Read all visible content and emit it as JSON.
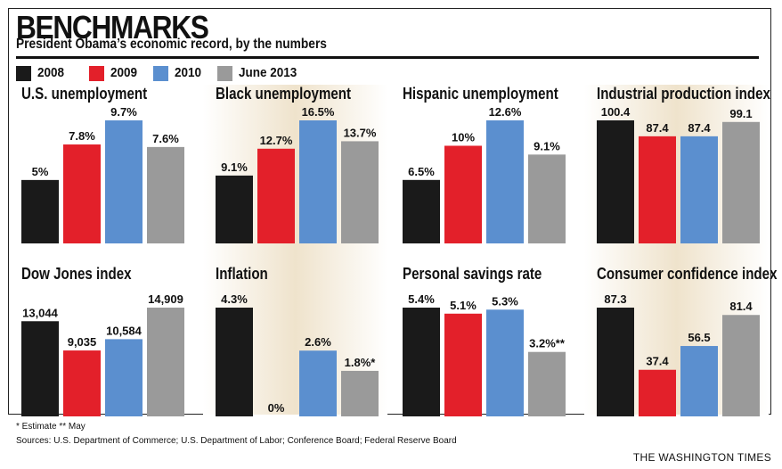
{
  "header": {
    "title": "BENCHMARKS",
    "subtitle": "President Obama’s economic record, by the numbers"
  },
  "legend": [
    {
      "label": "2008",
      "color": "#1a1a1a"
    },
    {
      "label": "2009",
      "color": "#e3202a"
    },
    {
      "label": "2010",
      "color": "#5b8fcf"
    },
    {
      "label": "June 2013",
      "color": "#9a9a9a"
    }
  ],
  "chart_data": [
    {
      "type": "bar",
      "title": "U.S. unemployment",
      "categories": [
        "2008",
        "2009",
        "2010",
        "June 2013"
      ],
      "values": [
        5,
        7.8,
        9.7,
        7.6
      ],
      "labels": [
        "5%",
        "7.8%",
        "9.7%",
        "7.6%"
      ],
      "ylim": [
        0,
        9.7
      ]
    },
    {
      "type": "bar",
      "title": "Black unemployment",
      "categories": [
        "2008",
        "2009",
        "2010",
        "June 2013"
      ],
      "values": [
        9.1,
        12.7,
        16.5,
        13.7
      ],
      "labels": [
        "9.1%",
        "12.7%",
        "16.5%",
        "13.7%"
      ],
      "ylim": [
        0,
        16.5
      ]
    },
    {
      "type": "bar",
      "title": "Hispanic unemployment",
      "categories": [
        "2008",
        "2009",
        "2010",
        "June 2013"
      ],
      "values": [
        6.5,
        10,
        12.6,
        9.1
      ],
      "labels": [
        "6.5%",
        "10%",
        "12.6%",
        "9.1%"
      ],
      "ylim": [
        0,
        12.6
      ]
    },
    {
      "type": "bar",
      "title": "Industrial production index",
      "categories": [
        "2008",
        "2009",
        "2010",
        "June 2013"
      ],
      "values": [
        100.4,
        87.4,
        87.4,
        99.1
      ],
      "labels": [
        "100.4",
        "87.4",
        "87.4",
        "99.1"
      ],
      "ylim": [
        0,
        100.4
      ]
    },
    {
      "type": "bar",
      "title": "Dow Jones index",
      "categories": [
        "2008",
        "2009",
        "2010",
        "June 2013"
      ],
      "values": [
        13044,
        9035,
        10584,
        14909
      ],
      "labels": [
        "13,044",
        "9,035",
        "10,584",
        "14,909"
      ],
      "ylim": [
        0,
        14909
      ]
    },
    {
      "type": "bar",
      "title": "Inflation",
      "categories": [
        "2008",
        "2009",
        "2010",
        "June 2013"
      ],
      "values": [
        4.3,
        0,
        2.6,
        1.8
      ],
      "labels": [
        "4.3%",
        "0%",
        "2.6%",
        "1.8%*"
      ],
      "ylim": [
        0,
        4.3
      ]
    },
    {
      "type": "bar",
      "title": "Personal savings rate",
      "categories": [
        "2008",
        "2009",
        "2010",
        "June 2013"
      ],
      "values": [
        5.4,
        5.1,
        5.3,
        3.2
      ],
      "labels": [
        "5.4%",
        "5.1%",
        "5.3%",
        "3.2%**"
      ],
      "ylim": [
        0,
        5.4
      ]
    },
    {
      "type": "bar",
      "title": "Consumer confidence index",
      "categories": [
        "2008",
        "2009",
        "2010",
        "June 2013"
      ],
      "values": [
        87.3,
        37.4,
        56.5,
        81.4
      ],
      "labels": [
        "87.3",
        "37.4",
        "56.5",
        "81.4"
      ],
      "ylim": [
        0,
        87.3
      ]
    }
  ],
  "footer": {
    "footnote": "* Estimate   ** May",
    "sources": "Sources: U.S. Department of Commerce; U.S. Department of Labor; Conference Board; Federal Reserve Board",
    "credit": "THE WASHINGTON TIMES"
  }
}
